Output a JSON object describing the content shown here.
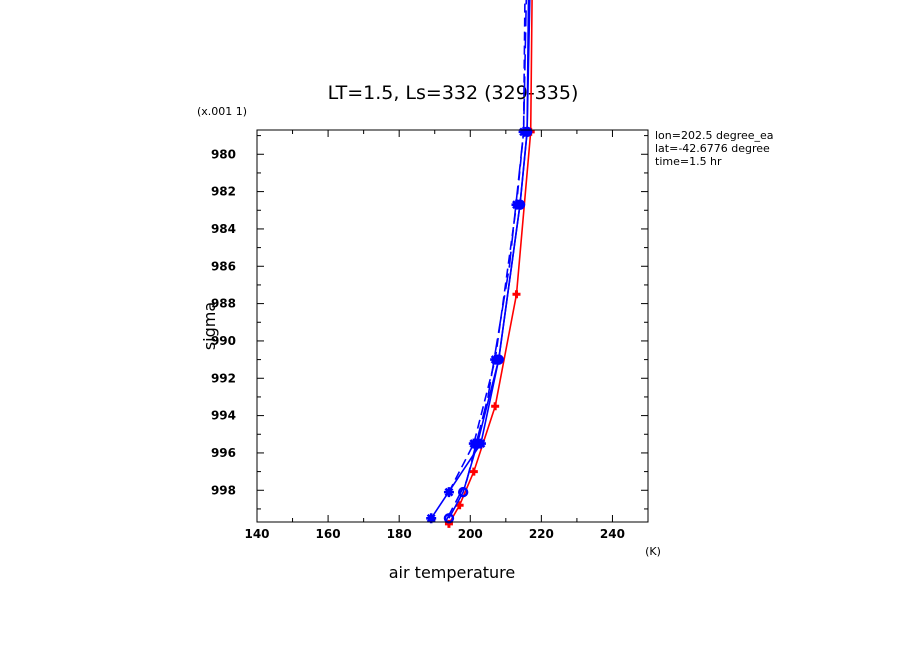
{
  "chart_data": {
    "type": "line",
    "title": "LT=1.5, Ls=332 (329-335)",
    "xlabel": "air temperature",
    "xunit": "(K)",
    "ylabel": "sigma",
    "yscale_note": "(x.001 1)",
    "xlim": [
      140,
      250
    ],
    "ylim": [
      999.7,
      978.7
    ],
    "x_ticks": [
      140,
      160,
      180,
      200,
      220,
      240
    ],
    "y_ticks": [
      980,
      982,
      984,
      986,
      988,
      990,
      992,
      994,
      996,
      998
    ],
    "annotations": [
      "lon=202.5 degree_ea",
      "lat=-42.6776 degree",
      "time=1.5 hr"
    ],
    "grid": false,
    "series": [
      {
        "color": "#ff0000",
        "dash": "solid",
        "marker": "plus",
        "points": [
          [
            194,
            999.8
          ],
          [
            197,
            998.8
          ],
          [
            201,
            997.0
          ],
          [
            207,
            993.5
          ],
          [
            213,
            987.5
          ],
          [
            217,
            978.8
          ],
          [
            218,
            960
          ]
        ]
      },
      {
        "color": "#0000ff",
        "dash": "solid",
        "marker": "star",
        "points": [
          [
            189,
            999.5
          ],
          [
            203,
            995.5
          ],
          [
            208,
            991.0
          ],
          [
            214,
            982.7
          ],
          [
            216,
            978.8
          ],
          [
            218,
            960
          ]
        ]
      },
      {
        "color": "#0000ff",
        "dash": "solid",
        "marker": "circle",
        "points": [
          [
            194,
            999.5
          ],
          [
            198,
            998.1
          ],
          [
            202,
            995.5
          ],
          [
            208,
            991.0
          ],
          [
            214,
            982.7
          ],
          [
            216,
            978.8
          ],
          [
            217,
            960
          ]
        ]
      },
      {
        "color": "#0000ff",
        "dash": "dash",
        "marker": "star",
        "points": [
          [
            194,
            998.1
          ],
          [
            201,
            995.5
          ],
          [
            207,
            991.0
          ],
          [
            213,
            982.7
          ],
          [
            215,
            978.8
          ],
          [
            216,
            960
          ]
        ]
      },
      {
        "color": "#0000ff",
        "dash": "longdash",
        "marker": "none",
        "points": [
          [
            193,
            999.7
          ],
          [
            199,
            997.5
          ],
          [
            205,
            993.0
          ],
          [
            211,
            986.0
          ],
          [
            215,
            978.8
          ],
          [
            217,
            960
          ]
        ]
      }
    ]
  }
}
